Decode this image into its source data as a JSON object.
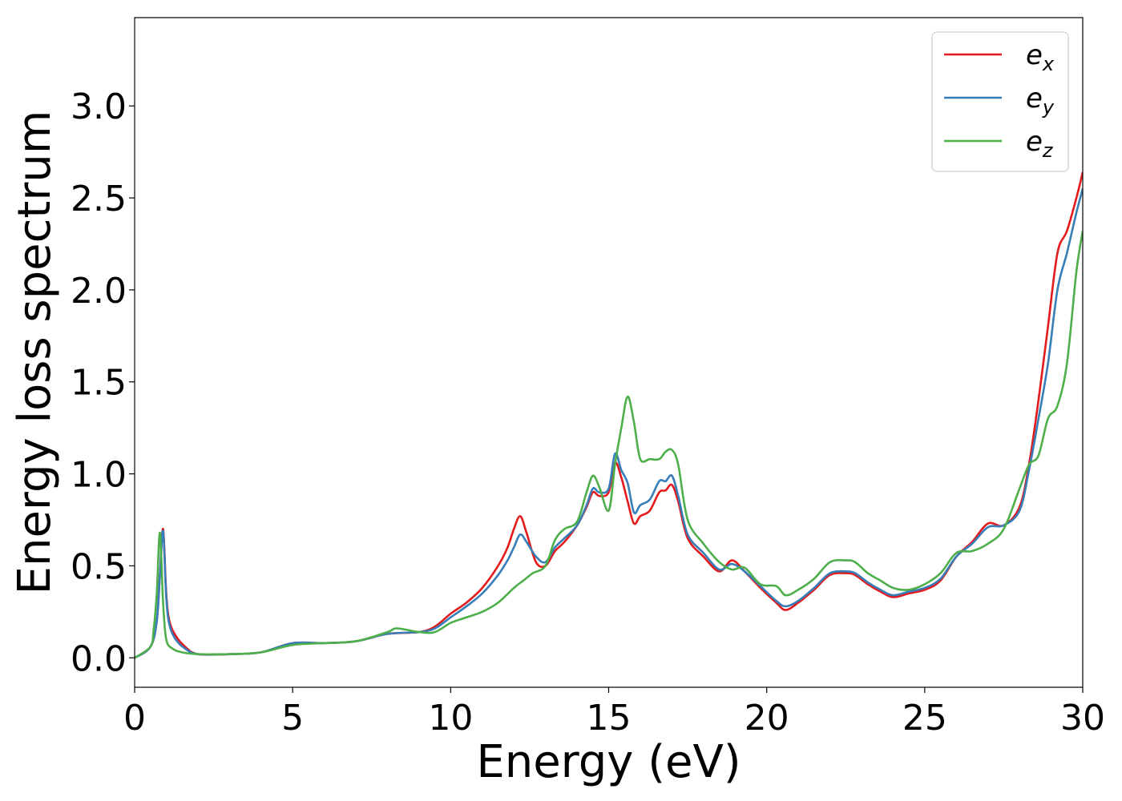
{
  "chart_data": {
    "type": "line",
    "title": "",
    "xlabel": "Energy (eV)",
    "ylabel": "Energy loss spectrum",
    "xlim": [
      0,
      30
    ],
    "ylim": [
      -0.16,
      3.48
    ],
    "xticks": [
      0,
      5,
      10,
      15,
      20,
      25,
      30
    ],
    "yticks": [
      0.0,
      0.5,
      1.0,
      1.5,
      2.0,
      2.5,
      3.0
    ],
    "xtick_labels": [
      "0",
      "5",
      "10",
      "15",
      "20",
      "25",
      "30"
    ],
    "ytick_labels": [
      "0.0",
      "0.5",
      "1.0",
      "1.5",
      "2.0",
      "2.5",
      "3.0"
    ],
    "grid": false,
    "legend_position": "top-right",
    "series": [
      {
        "name": "e_x",
        "legend_base": "e",
        "legend_sub": "x",
        "color": "#e41a1c",
        "x": [
          0,
          0.5,
          0.7,
          0.8,
          0.9,
          1.0,
          1.1,
          1.3,
          1.6,
          2.0,
          3.0,
          4.0,
          5.0,
          6.0,
          7.0,
          8.0,
          9.0,
          9.5,
          10.0,
          10.5,
          11.0,
          11.5,
          11.8,
          12.0,
          12.2,
          12.4,
          12.7,
          13.0,
          13.3,
          13.6,
          14.0,
          14.3,
          14.5,
          14.7,
          15.0,
          15.2,
          15.4,
          15.6,
          15.8,
          16.0,
          16.3,
          16.6,
          16.8,
          17.0,
          17.2,
          17.5,
          18.0,
          18.5,
          18.9,
          19.3,
          19.8,
          20.3,
          20.6,
          21.0,
          21.5,
          22.0,
          22.5,
          22.8,
          23.2,
          23.6,
          24.0,
          24.5,
          25.0,
          25.5,
          26.0,
          26.5,
          27.0,
          27.5,
          28.0,
          28.3,
          28.6,
          28.9,
          29.2,
          29.5,
          29.8,
          30.0
        ],
        "y": [
          0.0,
          0.06,
          0.2,
          0.45,
          0.7,
          0.35,
          0.2,
          0.12,
          0.06,
          0.02,
          0.02,
          0.03,
          0.08,
          0.08,
          0.09,
          0.13,
          0.14,
          0.17,
          0.24,
          0.3,
          0.38,
          0.5,
          0.6,
          0.7,
          0.77,
          0.68,
          0.52,
          0.5,
          0.58,
          0.63,
          0.72,
          0.82,
          0.9,
          0.88,
          0.9,
          1.06,
          0.98,
          0.85,
          0.73,
          0.77,
          0.8,
          0.9,
          0.91,
          0.94,
          0.85,
          0.65,
          0.55,
          0.47,
          0.53,
          0.47,
          0.38,
          0.3,
          0.26,
          0.3,
          0.37,
          0.45,
          0.46,
          0.45,
          0.4,
          0.36,
          0.33,
          0.35,
          0.37,
          0.42,
          0.55,
          0.63,
          0.73,
          0.72,
          0.82,
          1.05,
          1.4,
          1.8,
          2.2,
          2.32,
          2.5,
          2.64
        ]
      },
      {
        "name": "e_y",
        "legend_base": "e",
        "legend_sub": "y",
        "color": "#377eb8",
        "x": [
          0,
          0.5,
          0.7,
          0.8,
          0.9,
          1.0,
          1.1,
          1.3,
          1.6,
          2.0,
          3.0,
          4.0,
          5.0,
          6.0,
          7.0,
          8.0,
          9.0,
          9.5,
          10.0,
          10.5,
          11.0,
          11.5,
          11.8,
          12.0,
          12.2,
          12.4,
          12.7,
          13.0,
          13.3,
          13.6,
          14.0,
          14.3,
          14.5,
          14.7,
          15.0,
          15.2,
          15.4,
          15.6,
          15.8,
          16.0,
          16.3,
          16.6,
          16.8,
          17.0,
          17.2,
          17.5,
          18.0,
          18.5,
          18.9,
          19.3,
          19.8,
          20.3,
          20.6,
          21.0,
          21.5,
          22.0,
          22.5,
          22.8,
          23.2,
          23.6,
          24.0,
          24.5,
          25.0,
          25.5,
          26.0,
          26.5,
          27.0,
          27.5,
          28.0,
          28.3,
          28.6,
          28.9,
          29.2,
          29.5,
          29.8,
          30.0
        ],
        "y": [
          0.0,
          0.06,
          0.2,
          0.45,
          0.69,
          0.33,
          0.18,
          0.1,
          0.05,
          0.02,
          0.02,
          0.03,
          0.08,
          0.08,
          0.09,
          0.13,
          0.14,
          0.16,
          0.22,
          0.28,
          0.35,
          0.45,
          0.53,
          0.6,
          0.67,
          0.63,
          0.55,
          0.52,
          0.6,
          0.65,
          0.72,
          0.83,
          0.92,
          0.9,
          0.92,
          1.11,
          1.02,
          0.95,
          0.79,
          0.83,
          0.86,
          0.96,
          0.96,
          0.99,
          0.88,
          0.67,
          0.57,
          0.48,
          0.51,
          0.47,
          0.39,
          0.31,
          0.28,
          0.31,
          0.38,
          0.46,
          0.47,
          0.46,
          0.41,
          0.37,
          0.34,
          0.36,
          0.38,
          0.43,
          0.55,
          0.62,
          0.71,
          0.72,
          0.8,
          1.02,
          1.3,
          1.6,
          2.0,
          2.2,
          2.42,
          2.55
        ]
      },
      {
        "name": "e_z",
        "legend_base": "e",
        "legend_sub": "z",
        "color": "#4daf4a",
        "x": [
          0,
          0.5,
          0.6,
          0.7,
          0.8,
          0.9,
          1.0,
          1.2,
          1.5,
          2.0,
          3.0,
          4.0,
          5.0,
          6.0,
          7.0,
          8.0,
          8.3,
          9.0,
          9.5,
          10.0,
          10.5,
          11.0,
          11.5,
          12.0,
          12.3,
          12.6,
          13.0,
          13.3,
          13.6,
          14.0,
          14.3,
          14.5,
          14.7,
          15.0,
          15.2,
          15.4,
          15.6,
          15.8,
          16.0,
          16.3,
          16.6,
          16.8,
          17.0,
          17.2,
          17.5,
          18.0,
          18.5,
          18.9,
          19.3,
          19.8,
          20.3,
          20.6,
          21.0,
          21.5,
          22.0,
          22.5,
          22.8,
          23.2,
          23.6,
          24.0,
          24.5,
          25.0,
          25.5,
          26.0,
          26.5,
          27.0,
          27.5,
          28.0,
          28.3,
          28.6,
          28.9,
          29.2,
          29.5,
          29.8,
          30.0
        ],
        "y": [
          0.0,
          0.06,
          0.15,
          0.35,
          0.68,
          0.3,
          0.1,
          0.05,
          0.03,
          0.02,
          0.02,
          0.03,
          0.07,
          0.08,
          0.09,
          0.14,
          0.16,
          0.14,
          0.14,
          0.19,
          0.22,
          0.25,
          0.3,
          0.38,
          0.42,
          0.46,
          0.5,
          0.64,
          0.7,
          0.74,
          0.9,
          0.99,
          0.93,
          0.8,
          1.05,
          1.25,
          1.42,
          1.28,
          1.08,
          1.08,
          1.08,
          1.12,
          1.13,
          1.05,
          0.75,
          0.62,
          0.52,
          0.48,
          0.49,
          0.4,
          0.39,
          0.34,
          0.37,
          0.43,
          0.52,
          0.53,
          0.52,
          0.46,
          0.42,
          0.38,
          0.37,
          0.4,
          0.46,
          0.57,
          0.58,
          0.62,
          0.7,
          0.92,
          1.05,
          1.1,
          1.3,
          1.37,
          1.6,
          2.1,
          2.32
        ]
      }
    ]
  }
}
